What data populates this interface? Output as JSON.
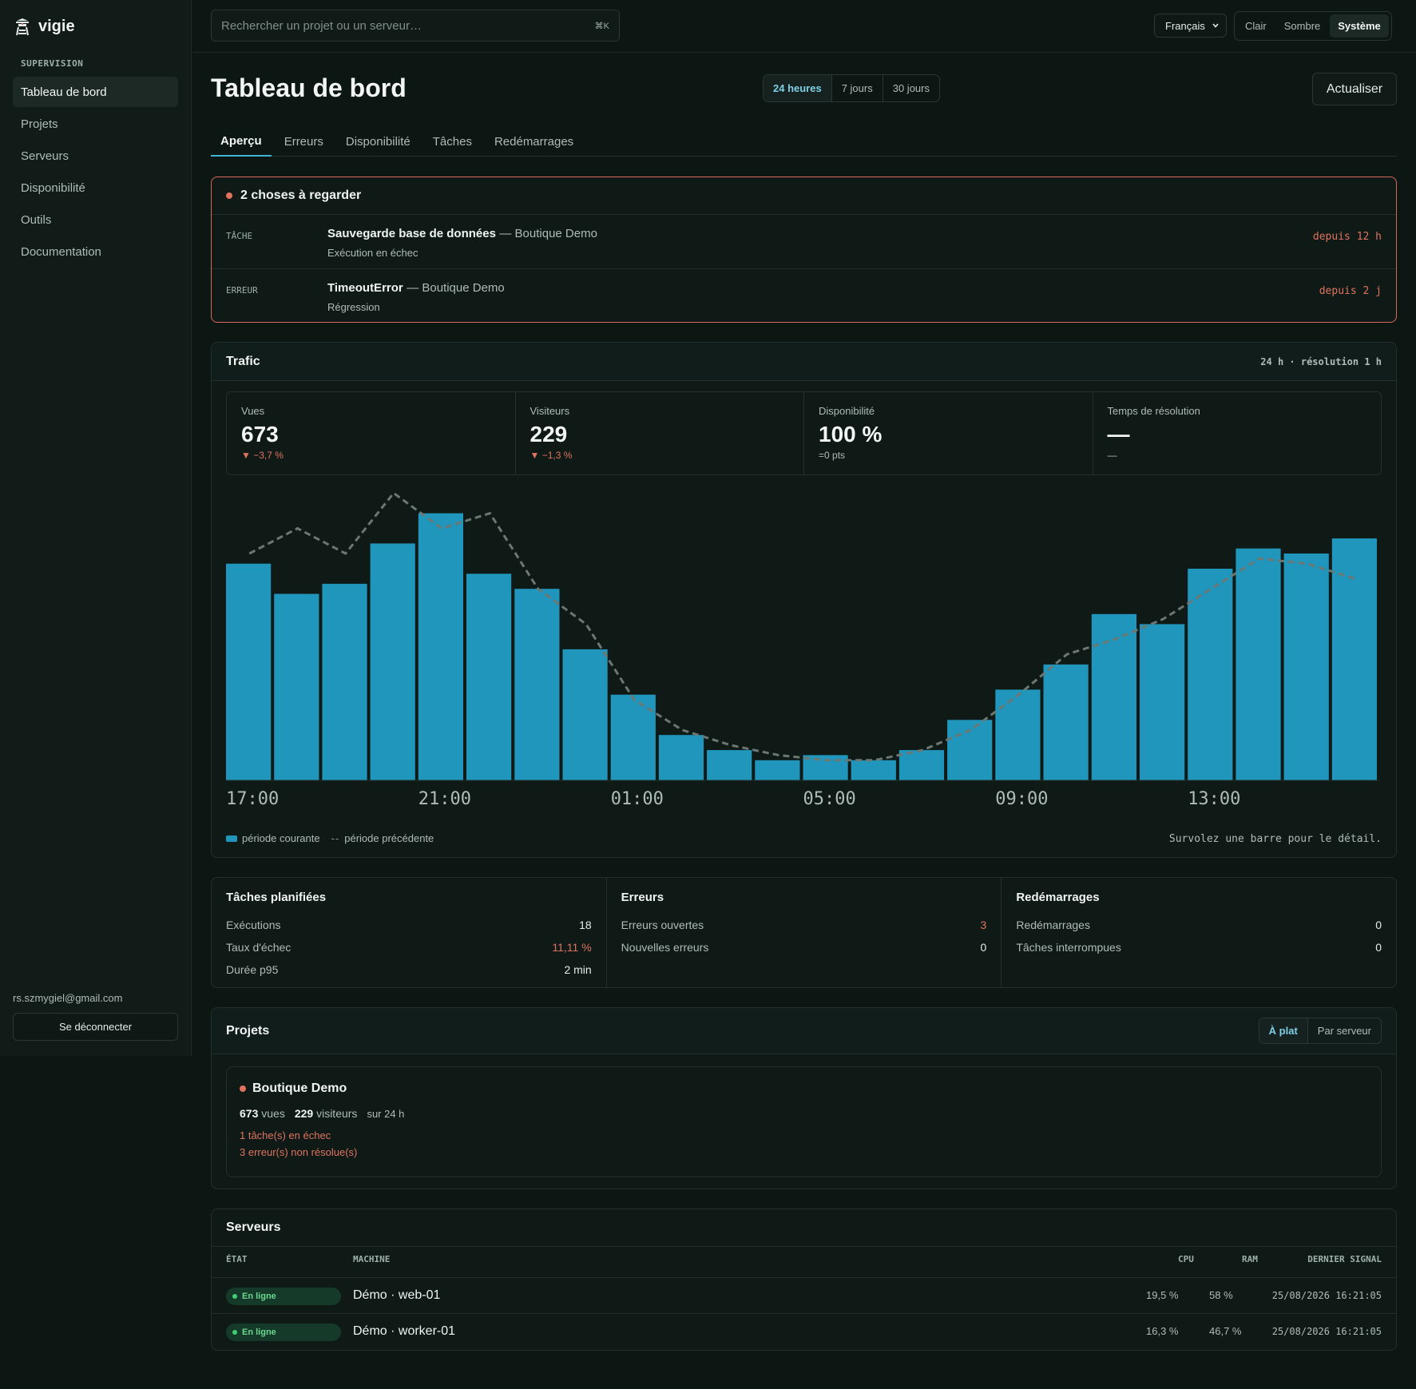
{
  "app": {
    "name": "vigie",
    "section": "SUPERVISION"
  },
  "sidebar": {
    "items": [
      {
        "label": "Tableau de bord",
        "active": true
      },
      {
        "label": "Projets"
      },
      {
        "label": "Serveurs"
      },
      {
        "label": "Disponibilité"
      },
      {
        "label": "Outils"
      },
      {
        "label": "Documentation"
      }
    ],
    "user_email": "rs.szmygiel@gmail.com",
    "logout_label": "Se déconnecter"
  },
  "topbar": {
    "search_placeholder": "Rechercher un projet ou un serveur…",
    "search_shortcut": "⌘K",
    "language": "Français",
    "themes": [
      "Clair",
      "Sombre",
      "Système"
    ],
    "active_theme": "Système"
  },
  "page": {
    "title": "Tableau de bord",
    "ranges": [
      "24 heures",
      "7 jours",
      "30 jours"
    ],
    "active_range": "24 heures",
    "refresh_label": "Actualiser",
    "tabs": [
      "Aperçu",
      "Erreurs",
      "Disponibilité",
      "Tâches",
      "Redémarrages"
    ],
    "active_tab": "Aperçu"
  },
  "alerts": {
    "title": "2 choses à regarder",
    "items": [
      {
        "kind": "TÂCHE",
        "title": "Sauvegarde base de données",
        "project": "— Boutique Demo",
        "subtitle": "Exécution en échec",
        "since": "depuis 12 h"
      },
      {
        "kind": "ERREUR",
        "title": "TimeoutError",
        "project": "— Boutique Demo",
        "subtitle": "Régression",
        "since": "depuis 2 j"
      }
    ]
  },
  "traffic": {
    "title": "Trafic",
    "meta": "24 h · résolution 1 h",
    "stats": [
      {
        "label": "Vues",
        "value": "673",
        "delta": "▼ −3,7 %",
        "negative": true
      },
      {
        "label": "Visiteurs",
        "value": "229",
        "delta": "▼ −1,3 %",
        "negative": true
      },
      {
        "label": "Disponibilité",
        "value": "100 %",
        "delta": "=0 pts",
        "negative": false
      },
      {
        "label": "Temps de résolution",
        "value": "—",
        "delta": "—",
        "negative": false
      }
    ],
    "legend_current": "période courante",
    "legend_previous": "période précédente",
    "hover_hint": "Survolez une barre pour le détail."
  },
  "chart_data": {
    "type": "bar",
    "categories": [
      "17:00",
      "18:00",
      "19:00",
      "20:00",
      "21:00",
      "22:00",
      "23:00",
      "00:00",
      "01:00",
      "02:00",
      "03:00",
      "04:00",
      "05:00",
      "06:00",
      "07:00",
      "08:00",
      "09:00",
      "10:00",
      "11:00",
      "12:00",
      "13:00",
      "14:00",
      "15:00",
      "16:00"
    ],
    "tick_labels": [
      "17:00",
      "21:00",
      "01:00",
      "05:00",
      "09:00",
      "13:00"
    ],
    "series": [
      {
        "name": "période courante",
        "style": "bar",
        "color": "#2196bd",
        "values": [
          43,
          37,
          39,
          47,
          53,
          41,
          38,
          26,
          17,
          9,
          6,
          4,
          5,
          4,
          6,
          12,
          18,
          23,
          33,
          31,
          42,
          46,
          45,
          48
        ]
      },
      {
        "name": "période précédente",
        "style": "dashed-line",
        "color": "#6b7773",
        "values": [
          45,
          50,
          45,
          57,
          50,
          53,
          38,
          31,
          16,
          10,
          7,
          5,
          4,
          4,
          6,
          10,
          17,
          25,
          28,
          32,
          38,
          44,
          43,
          40
        ]
      }
    ],
    "ylim": [
      0,
      58
    ]
  },
  "summary": {
    "columns": [
      {
        "title": "Tâches planifiées",
        "rows": [
          {
            "label": "Exécutions",
            "value": "18",
            "warn": false
          },
          {
            "label": "Taux d'échec",
            "value": "11,11 %",
            "warn": true
          },
          {
            "label": "Durée p95",
            "value": "2 min",
            "warn": false
          }
        ]
      },
      {
        "title": "Erreurs",
        "rows": [
          {
            "label": "Erreurs ouvertes",
            "value": "3",
            "warn": true
          },
          {
            "label": "Nouvelles erreurs",
            "value": "0",
            "warn": false
          }
        ]
      },
      {
        "title": "Redémarrages",
        "rows": [
          {
            "label": "Redémarrages",
            "value": "0",
            "warn": false
          },
          {
            "label": "Tâches interrompues",
            "value": "0",
            "warn": false
          }
        ]
      }
    ]
  },
  "projects": {
    "title": "Projets",
    "views": [
      "À plat",
      "Par serveur"
    ],
    "active_view": "À plat",
    "items": [
      {
        "name": "Boutique Demo",
        "views": "673",
        "views_label": "vues",
        "visitors": "229",
        "visitors_label": "visiteurs",
        "window": "sur 24 h",
        "warnings": [
          "1 tâche(s) en échec",
          "3 erreur(s) non résolue(s)"
        ]
      }
    ]
  },
  "servers": {
    "title": "Serveurs",
    "columns": [
      "ÉTAT",
      "MACHINE",
      "CPU",
      "RAM",
      "DERNIER SIGNAL"
    ],
    "rows": [
      {
        "status": "En ligne",
        "machine": "Démo · web-01",
        "cpu": "19,5 %",
        "ram": "58 %",
        "last": "25/08/2026 16:21:05"
      },
      {
        "status": "En ligne",
        "machine": "Démo · worker-01",
        "cpu": "16,3 %",
        "ram": "46,7 %",
        "last": "25/08/2026 16:21:05"
      }
    ]
  },
  "colors": {
    "accent": "#3fb4d4",
    "bar": "#2196bd",
    "danger": "#e0735f",
    "ok": "#3fcf73"
  }
}
